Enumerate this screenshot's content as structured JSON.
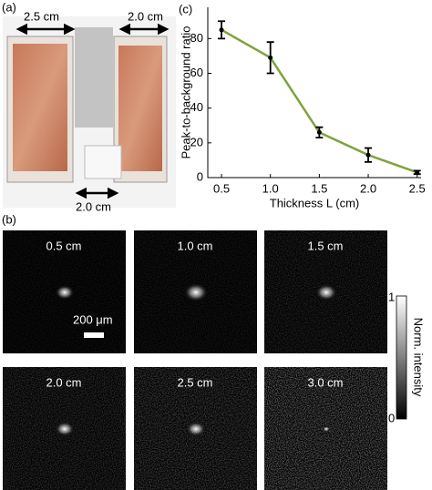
{
  "panels": {
    "a": "(a)",
    "b": "(b)",
    "c": "(c)"
  },
  "photo": {
    "left_width": "2.5 cm",
    "right_width": "2.0 cm",
    "cube_width": "2.0 cm"
  },
  "images": {
    "labels": [
      "0.5 cm",
      "1.0 cm",
      "1.5 cm",
      "2.0 cm",
      "2.5 cm",
      "3.0 cm"
    ],
    "scale_bar": "200 μm"
  },
  "colorbar": {
    "label": "Norm. intensity",
    "max": "1",
    "min": "0"
  },
  "chart_data": {
    "type": "line",
    "x_label": "Thickness L (cm)",
    "y_label": "Peak-to-background ratio",
    "x": [
      0.5,
      1.0,
      1.5,
      2.0,
      2.5
    ],
    "values": [
      85,
      69,
      26,
      13,
      3
    ],
    "errors": [
      5,
      9,
      3,
      4,
      1
    ],
    "color": "#7da43c",
    "xlim": [
      0.36,
      2.54
    ],
    "ylim": [
      0,
      98
    ],
    "xticks": [
      0.5,
      {
        "value": 1,
        "label": "1.0"
      },
      1.5,
      {
        "value": 2,
        "label": "2.0"
      },
      2.5
    ],
    "yticks": [
      0,
      20,
      40,
      60,
      80
    ]
  }
}
